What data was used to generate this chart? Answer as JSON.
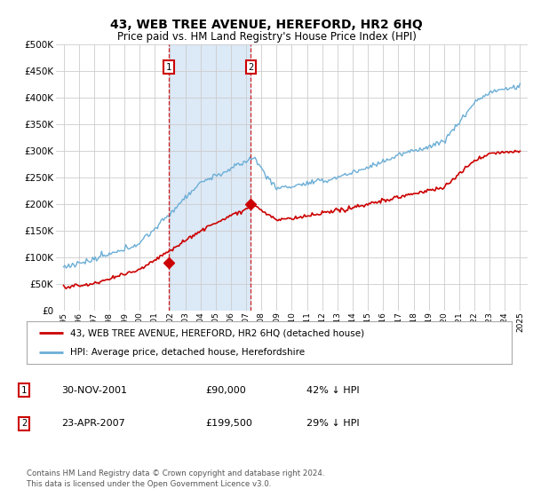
{
  "title": "43, WEB TREE AVENUE, HEREFORD, HR2 6HQ",
  "subtitle": "Price paid vs. HM Land Registry's House Price Index (HPI)",
  "background_color": "#ffffff",
  "plot_bg_color": "#ffffff",
  "grid_color": "#cccccc",
  "shaded_region_color": "#dce9f7",
  "purchase_1": {
    "date_num": 2001.92,
    "price": 90000,
    "label": "1"
  },
  "purchase_2": {
    "date_num": 2007.31,
    "price": 199500,
    "label": "2"
  },
  "legend_line1": "43, WEB TREE AVENUE, HEREFORD, HR2 6HQ (detached house)",
  "legend_line2": "HPI: Average price, detached house, Herefordshire",
  "table_rows": [
    {
      "num": "1",
      "date": "30-NOV-2001",
      "price": "£90,000",
      "pct": "42% ↓ HPI"
    },
    {
      "num": "2",
      "date": "23-APR-2007",
      "price": "£199,500",
      "pct": "29% ↓ HPI"
    }
  ],
  "footnote1": "Contains HM Land Registry data © Crown copyright and database right 2024.",
  "footnote2": "This data is licensed under the Open Government Licence v3.0.",
  "hpi_color": "#6baed6",
  "price_color": "#cc0000",
  "ylim": [
    0,
    500000
  ],
  "xlim_start": 1994.5,
  "xlim_end": 2025.5,
  "yticks": [
    0,
    50000,
    100000,
    150000,
    200000,
    250000,
    300000,
    350000,
    400000,
    450000,
    500000
  ]
}
